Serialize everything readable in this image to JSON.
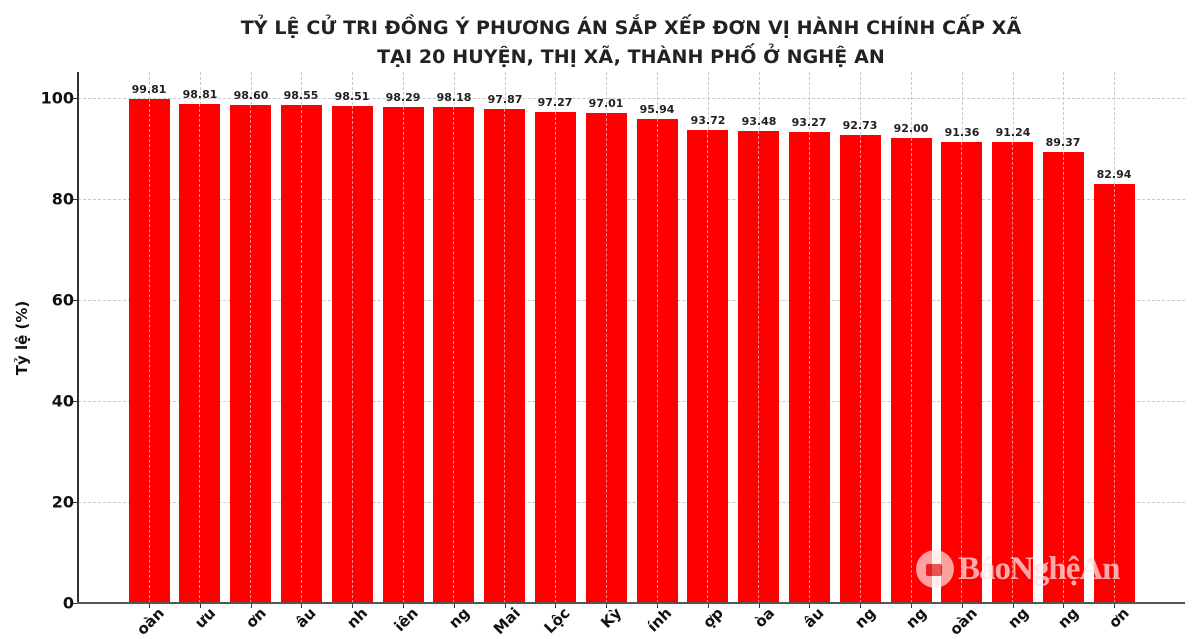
{
  "chart_data": {
    "type": "bar",
    "title": "TỶ LỆ CỬ TRI ĐỒNG Ý PHƯƠNG ÁN SẮP XẾP ĐƠN VỊ HÀNH CHÍNH CẤP XÃ TẠI 20 HUYỆN, THỊ XÃ, THÀNH PHỐ Ở NGHỆ AN",
    "title_lines": [
      "TỶ LỆ CỬ TRI ĐỒNG Ý PHƯƠNG ÁN SẮP XẾP ĐƠN VỊ HÀNH CHÍNH CẤP XÃ",
      "TẠI 20 HUYỆN, THỊ XÃ, THÀNH PHỐ Ở NGHỆ AN"
    ],
    "xlabel": "",
    "ylabel": "Tỷ lệ (%)",
    "ylim": [
      0,
      105
    ],
    "yticks": [
      0,
      20,
      40,
      60,
      80,
      100
    ],
    "grid": true,
    "bar_color": "#ff0000",
    "categories_visible_fragments": [
      "oàn",
      "ưu",
      "ơn",
      "âu",
      "nh",
      "iên",
      "ng",
      "Mai",
      "Lộc",
      "Kỳ",
      "ính",
      "ợp",
      "òa",
      "âu",
      "ng",
      "ng",
      "oàn",
      "ng",
      "ng",
      "ơn"
    ],
    "values": [
      99.81,
      98.81,
      98.6,
      98.55,
      98.51,
      98.29,
      98.18,
      97.87,
      97.27,
      97.01,
      95.94,
      93.72,
      93.48,
      93.27,
      92.73,
      92.0,
      91.36,
      91.24,
      89.37,
      82.94
    ],
    "value_labels": [
      "99.81",
      "98.81",
      "98.60",
      "98.55",
      "98.51",
      "98.29",
      "98.18",
      "97.87",
      "97.27",
      "97.01",
      "95.94",
      "93.72",
      "93.48",
      "93.27",
      "92.73",
      "92.00",
      "91.36",
      "91.24",
      "89.37",
      "82.94"
    ]
  },
  "watermark": {
    "text": "BáoNghệAn"
  }
}
